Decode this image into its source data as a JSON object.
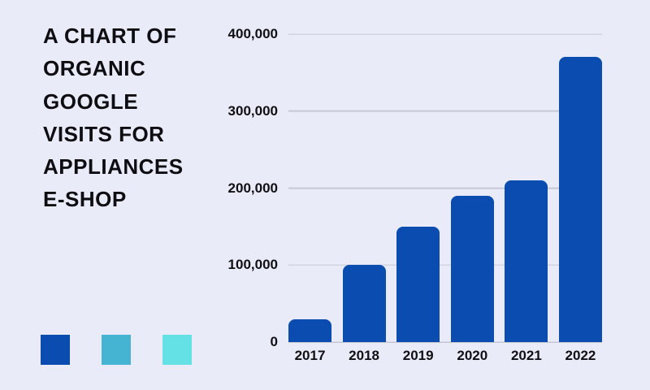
{
  "title": {
    "lines": [
      "A CHART OF",
      "ORGANIC",
      "GOOGLE",
      "VISITS FOR",
      "APPLIANCES",
      "E-SHOP"
    ]
  },
  "legend": {
    "swatches": [
      {
        "name": "dark-blue",
        "color": "#0a4cb0"
      },
      {
        "name": "teal-blue",
        "color": "#45b4d2"
      },
      {
        "name": "light-cyan",
        "color": "#63e1e5"
      }
    ]
  },
  "colors": {
    "background": "#e9ebf9",
    "bar": "#0a4cb0",
    "text": "#0d0d12",
    "gridline": "#c6c9d7",
    "baseline": "#b2b6c4"
  },
  "chart_data": {
    "type": "bar",
    "title": "A CHART OF ORGANIC GOOGLE VISITS FOR APPLIANCES E-SHOP",
    "categories": [
      "2017",
      "2018",
      "2019",
      "2020",
      "2021",
      "2022"
    ],
    "values": [
      30000,
      100000,
      150000,
      190000,
      210000,
      370000
    ],
    "xlabel": "",
    "ylabel": "",
    "ylim": [
      0,
      400000
    ],
    "yticks": [
      {
        "label": "0",
        "value": 0
      },
      {
        "label": "100,000",
        "value": 100000
      },
      {
        "label": "200,000",
        "value": 200000
      },
      {
        "label": "300,000",
        "value": 300000
      },
      {
        "label": "400,000",
        "value": 400000
      }
    ],
    "grid": true,
    "legend_position": "none"
  }
}
